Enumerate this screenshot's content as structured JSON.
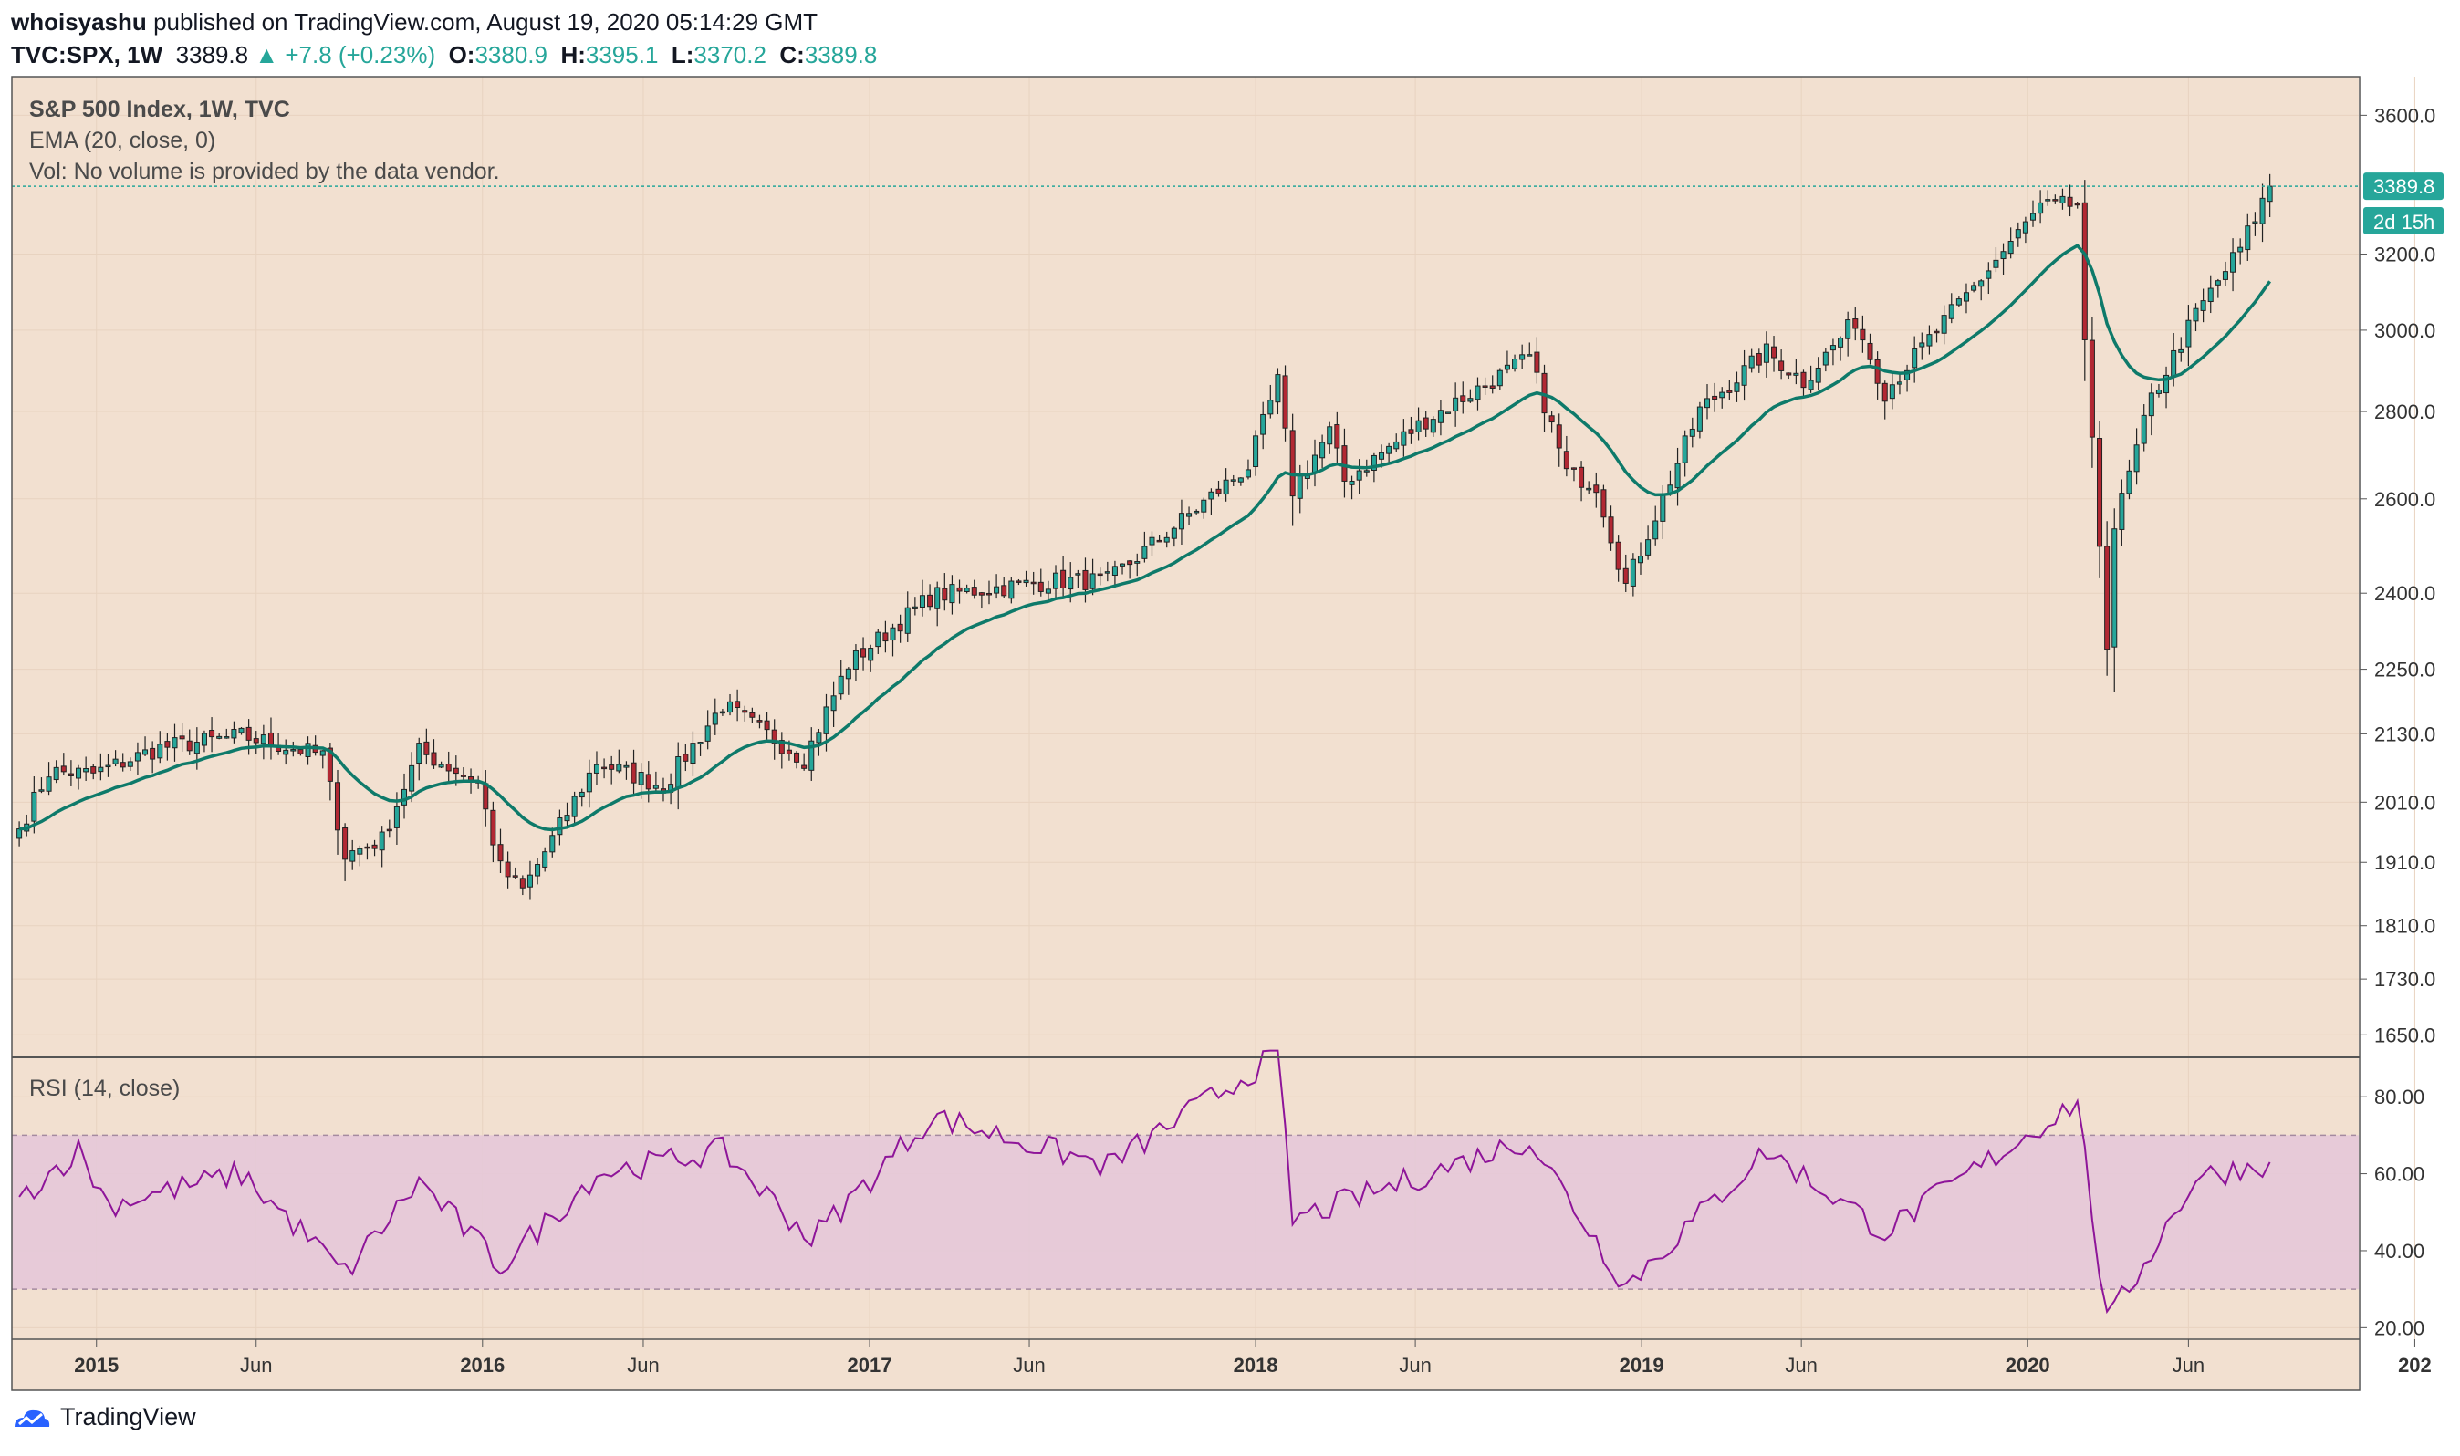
{
  "header": {
    "user": "whoisyashu",
    "published_text": "published on TradingView.com, August 19, 2020 05:14:29 GMT",
    "symbol": "TVC:SPX, 1W",
    "last": "3389.8",
    "change": "+7.8 (+0.23%)",
    "open_label": "O:",
    "open": "3380.9",
    "high_label": "H:",
    "high": "3395.1",
    "low_label": "L:",
    "low": "3370.2",
    "close_label": "C:",
    "close": "3389.8"
  },
  "legend": {
    "title": "S&P 500 Index, 1W, TVC",
    "ema": "EMA (20, close, 0)",
    "vol": "Vol: No volume is provided by the data vendor."
  },
  "price_badge": {
    "value": "3389.8",
    "countdown": "2d 15h"
  },
  "rsi": {
    "label": "RSI (14, close)",
    "upper_band": 70,
    "lower_band": 30
  },
  "footer": {
    "brand": "TradingView"
  },
  "colors": {
    "background": "#f2e0d0",
    "up": "#26a69a",
    "down": "#b22833",
    "ema": "#0e7a6a",
    "rsi_line": "#8e1599",
    "rsi_band": "#e6c8d8",
    "badge": "#26a69a"
  },
  "chart_data": [
    {
      "type": "candlestick",
      "title": "S&P 500 Index, 1W, TVC",
      "scale": "log",
      "y_ticks": [
        3600,
        3200,
        3000,
        2800,
        2600,
        2400,
        2250,
        2130,
        2010,
        1910,
        1810,
        1730,
        1650
      ],
      "y_tick_labels": [
        "3600.0",
        "3200.0",
        "3000.0",
        "2800.0",
        "2600.0",
        "2400.0",
        "2250.0",
        "2130.0",
        "2010.0",
        "1910.0",
        "1810.0",
        "1730.0",
        "1650.0"
      ],
      "ylim": [
        1620,
        3720
      ],
      "x_ticks": [
        "2015",
        "Jun",
        "2016",
        "Jun",
        "2017",
        "Jun",
        "2018",
        "Jun",
        "2019",
        "Jun",
        "2020",
        "Jun",
        "202"
      ],
      "x_range": [
        "2014-10-13",
        "2020-11-09"
      ],
      "last_date": "2020-08-17",
      "key_closes": [
        {
          "date": "2014-10-20",
          "close": 1965
        },
        {
          "date": "2014-11-17",
          "close": 2063
        },
        {
          "date": "2014-12-29",
          "close": 2059
        },
        {
          "date": "2015-03-02",
          "close": 2105
        },
        {
          "date": "2015-05-18",
          "close": 2126
        },
        {
          "date": "2015-08-03",
          "close": 2092
        },
        {
          "date": "2015-08-24",
          "close": 1922
        },
        {
          "date": "2015-09-28",
          "close": 1947
        },
        {
          "date": "2015-11-02",
          "close": 2099
        },
        {
          "date": "2015-12-28",
          "close": 2044
        },
        {
          "date": "2016-01-18",
          "close": 1900
        },
        {
          "date": "2016-02-08",
          "close": 1865
        },
        {
          "date": "2016-04-18",
          "close": 2080
        },
        {
          "date": "2016-06-20",
          "close": 2037
        },
        {
          "date": "2016-08-15",
          "close": 2183
        },
        {
          "date": "2016-10-31",
          "close": 2085
        },
        {
          "date": "2016-12-12",
          "close": 2260
        },
        {
          "date": "2017-03-01",
          "close": 2395
        },
        {
          "date": "2017-06-26",
          "close": 2425
        },
        {
          "date": "2017-08-14",
          "close": 2425
        },
        {
          "date": "2017-12-25",
          "close": 2673
        },
        {
          "date": "2018-01-22",
          "close": 2872
        },
        {
          "date": "2018-02-05",
          "close": 2619
        },
        {
          "date": "2018-03-12",
          "close": 2752
        },
        {
          "date": "2018-03-26",
          "close": 2640
        },
        {
          "date": "2018-06-11",
          "close": 2780
        },
        {
          "date": "2018-09-17",
          "close": 2930
        },
        {
          "date": "2018-10-22",
          "close": 2658
        },
        {
          "date": "2018-11-19",
          "close": 2632
        },
        {
          "date": "2018-12-17",
          "close": 2416
        },
        {
          "date": "2019-02-25",
          "close": 2803
        },
        {
          "date": "2019-04-29",
          "close": 2945
        },
        {
          "date": "2019-06-03",
          "close": 2873
        },
        {
          "date": "2019-07-22",
          "close": 3025
        },
        {
          "date": "2019-08-19",
          "close": 2847
        },
        {
          "date": "2019-10-28",
          "close": 3066
        },
        {
          "date": "2020-01-13",
          "close": 3330
        },
        {
          "date": "2020-02-17",
          "close": 3337
        },
        {
          "date": "2020-02-24",
          "close": 2954
        },
        {
          "date": "2020-03-16",
          "close": 2304
        },
        {
          "date": "2020-03-23",
          "close": 2541
        },
        {
          "date": "2020-04-27",
          "close": 2831
        },
        {
          "date": "2020-06-08",
          "close": 3041
        },
        {
          "date": "2020-07-20",
          "close": 3215
        },
        {
          "date": "2020-08-17",
          "close": 3389.8
        }
      ]
    },
    {
      "type": "line",
      "title": "RSI (14, close)",
      "y_ticks": [
        80,
        60,
        40,
        20
      ],
      "y_tick_labels": [
        "80.00",
        "60.00",
        "40.00",
        "20.00"
      ],
      "ylim": [
        17,
        90
      ],
      "bands": [
        30,
        70
      ],
      "key_values": [
        {
          "date": "2014-10-20",
          "rsi": 54
        },
        {
          "date": "2014-12-15",
          "rsi": 66
        },
        {
          "date": "2015-01-12",
          "rsi": 52
        },
        {
          "date": "2015-05-18",
          "rsi": 60
        },
        {
          "date": "2015-08-24",
          "rsi": 34
        },
        {
          "date": "2015-11-02",
          "rsi": 58
        },
        {
          "date": "2016-01-18",
          "rsi": 36
        },
        {
          "date": "2016-04-18",
          "rsi": 60
        },
        {
          "date": "2016-08-15",
          "rsi": 66
        },
        {
          "date": "2016-11-07",
          "rsi": 43
        },
        {
          "date": "2017-03-01",
          "rsi": 75
        },
        {
          "date": "2017-08-14",
          "rsi": 62
        },
        {
          "date": "2018-01-22",
          "rsi": 91
        },
        {
          "date": "2018-02-05",
          "rsi": 48
        },
        {
          "date": "2018-09-17",
          "rsi": 69
        },
        {
          "date": "2018-12-17",
          "rsi": 31
        },
        {
          "date": "2019-04-29",
          "rsi": 66
        },
        {
          "date": "2019-08-19",
          "rsi": 45
        },
        {
          "date": "2020-02-17",
          "rsi": 79
        },
        {
          "date": "2020-03-16",
          "rsi": 21
        },
        {
          "date": "2020-06-08",
          "rsi": 59
        },
        {
          "date": "2020-08-17",
          "rsi": 63
        }
      ]
    }
  ]
}
